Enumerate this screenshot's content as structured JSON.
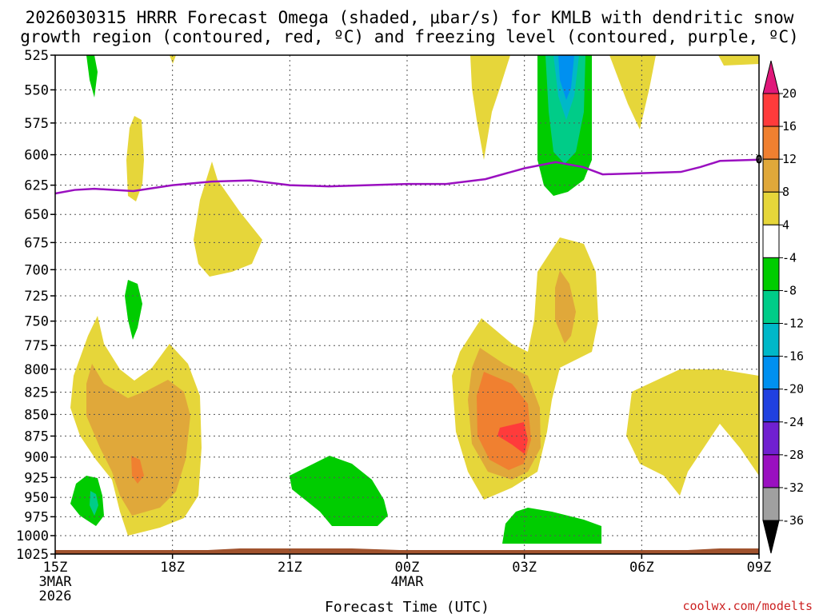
{
  "chart_data": {
    "type": "time-height cross section",
    "title_line1": "2026030315 HRRR Forecast Omega (shaded, μbar/s) for KMLB with dendritic snow",
    "title_line2": "growth region (contoured, red, ºC) and freezing level (contoured, purple, ºC)",
    "xlabel": "Forecast Time (UTC)",
    "credit": "coolwx.com/modelts",
    "x_range_hours": [
      15,
      33
    ],
    "y_levels": [
      "525",
      "550",
      "575",
      "600",
      "625",
      "650",
      "675",
      "700",
      "725",
      "750",
      "775",
      "800",
      "825",
      "850",
      "875",
      "900",
      "925",
      "950",
      "975",
      "1000",
      "1025"
    ],
    "x_ticks": [
      {
        "hour": 15,
        "label": "15Z",
        "sub1": "3MAR",
        "sub2": "2026"
      },
      {
        "hour": 18,
        "label": "18Z",
        "sub1": "",
        "sub2": ""
      },
      {
        "hour": 21,
        "label": "21Z",
        "sub1": "",
        "sub2": ""
      },
      {
        "hour": 24,
        "label": "00Z",
        "sub1": "4MAR",
        "sub2": ""
      },
      {
        "hour": 27,
        "label": "03Z",
        "sub1": "",
        "sub2": ""
      },
      {
        "hour": 30,
        "label": "06Z",
        "sub1": "",
        "sub2": ""
      },
      {
        "hour": 33,
        "label": "09Z",
        "sub1": "",
        "sub2": ""
      }
    ],
    "colorbar": {
      "labels": [
        "20",
        "16",
        "12",
        "8",
        "4",
        "-4",
        "-8",
        "-12",
        "-16",
        "-20",
        "-24",
        "-28",
        "-32",
        "-36"
      ],
      "colors": [
        "#ff3b3b",
        "#f08030",
        "#e0a83a",
        "#e6d63a",
        "#ffffff",
        "#00cc00",
        "#00cc88",
        "#00b8c8",
        "#0090f0",
        "#2040e0",
        "#7020d0",
        "#9a10c0",
        "#a0a0a0"
      ],
      "top_color": "#e0187a",
      "bottom_color": "#000000"
    },
    "freezing_level_label": "0",
    "freezing_level": [
      [
        15,
        632
      ],
      [
        15.5,
        629
      ],
      [
        16.0,
        628
      ],
      [
        17.0,
        630
      ],
      [
        18.0,
        625
      ],
      [
        19.0,
        622
      ],
      [
        20.0,
        621
      ],
      [
        21.0,
        625
      ],
      [
        22.0,
        626
      ],
      [
        23.0,
        625
      ],
      [
        24.0,
        624
      ],
      [
        25.0,
        624
      ],
      [
        26.0,
        620
      ],
      [
        27.0,
        611
      ],
      [
        27.8,
        606
      ],
      [
        28.5,
        610
      ],
      [
        29.0,
        616
      ],
      [
        30.0,
        615
      ],
      [
        31.0,
        614
      ],
      [
        31.5,
        610
      ],
      [
        32.0,
        605
      ],
      [
        33.0,
        604
      ]
    ]
  }
}
